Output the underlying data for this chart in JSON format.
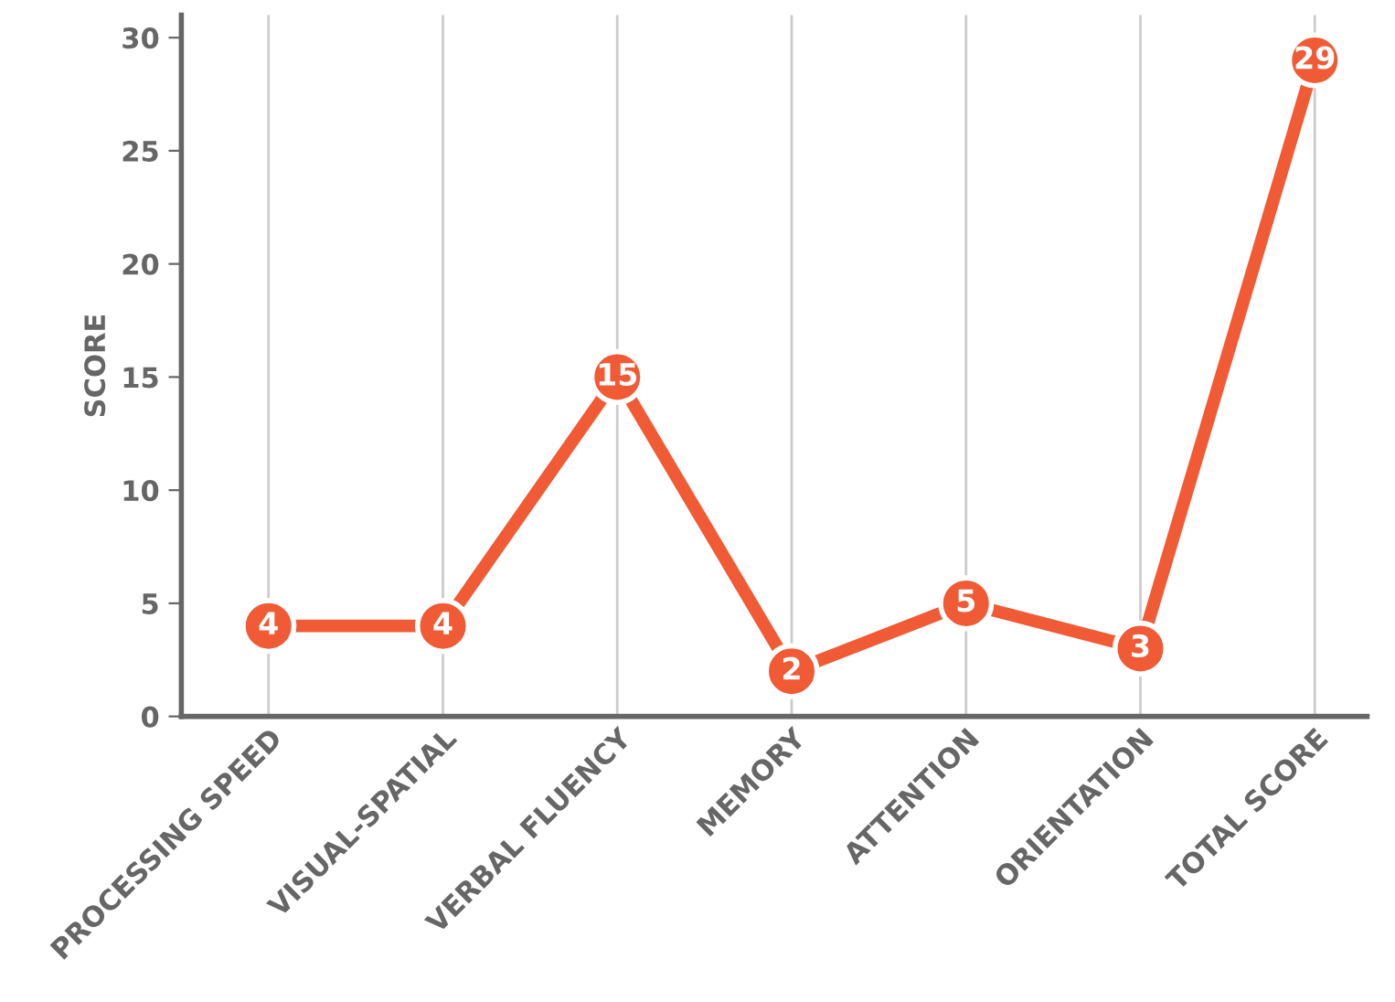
{
  "chart_data": {
    "type": "line",
    "ylabel": "SCORE",
    "categories": [
      "PROCESSING SPEED",
      "VISUAL-SPATIAL",
      "VERBAL FLUENCY",
      "MEMORY",
      "ATTENTION",
      "ORIENTATION",
      "TOTAL SCORE"
    ],
    "series": [
      {
        "color": "#f05a35",
        "values": [
          4,
          4,
          15,
          2,
          5,
          3,
          29
        ]
      }
    ],
    "ylim": [
      0,
      31
    ],
    "yticks": [
      0,
      5,
      10,
      15,
      20,
      25,
      30
    ],
    "grid": "x",
    "marker": "circle",
    "line_style": "solid",
    "data_labels": true
  }
}
